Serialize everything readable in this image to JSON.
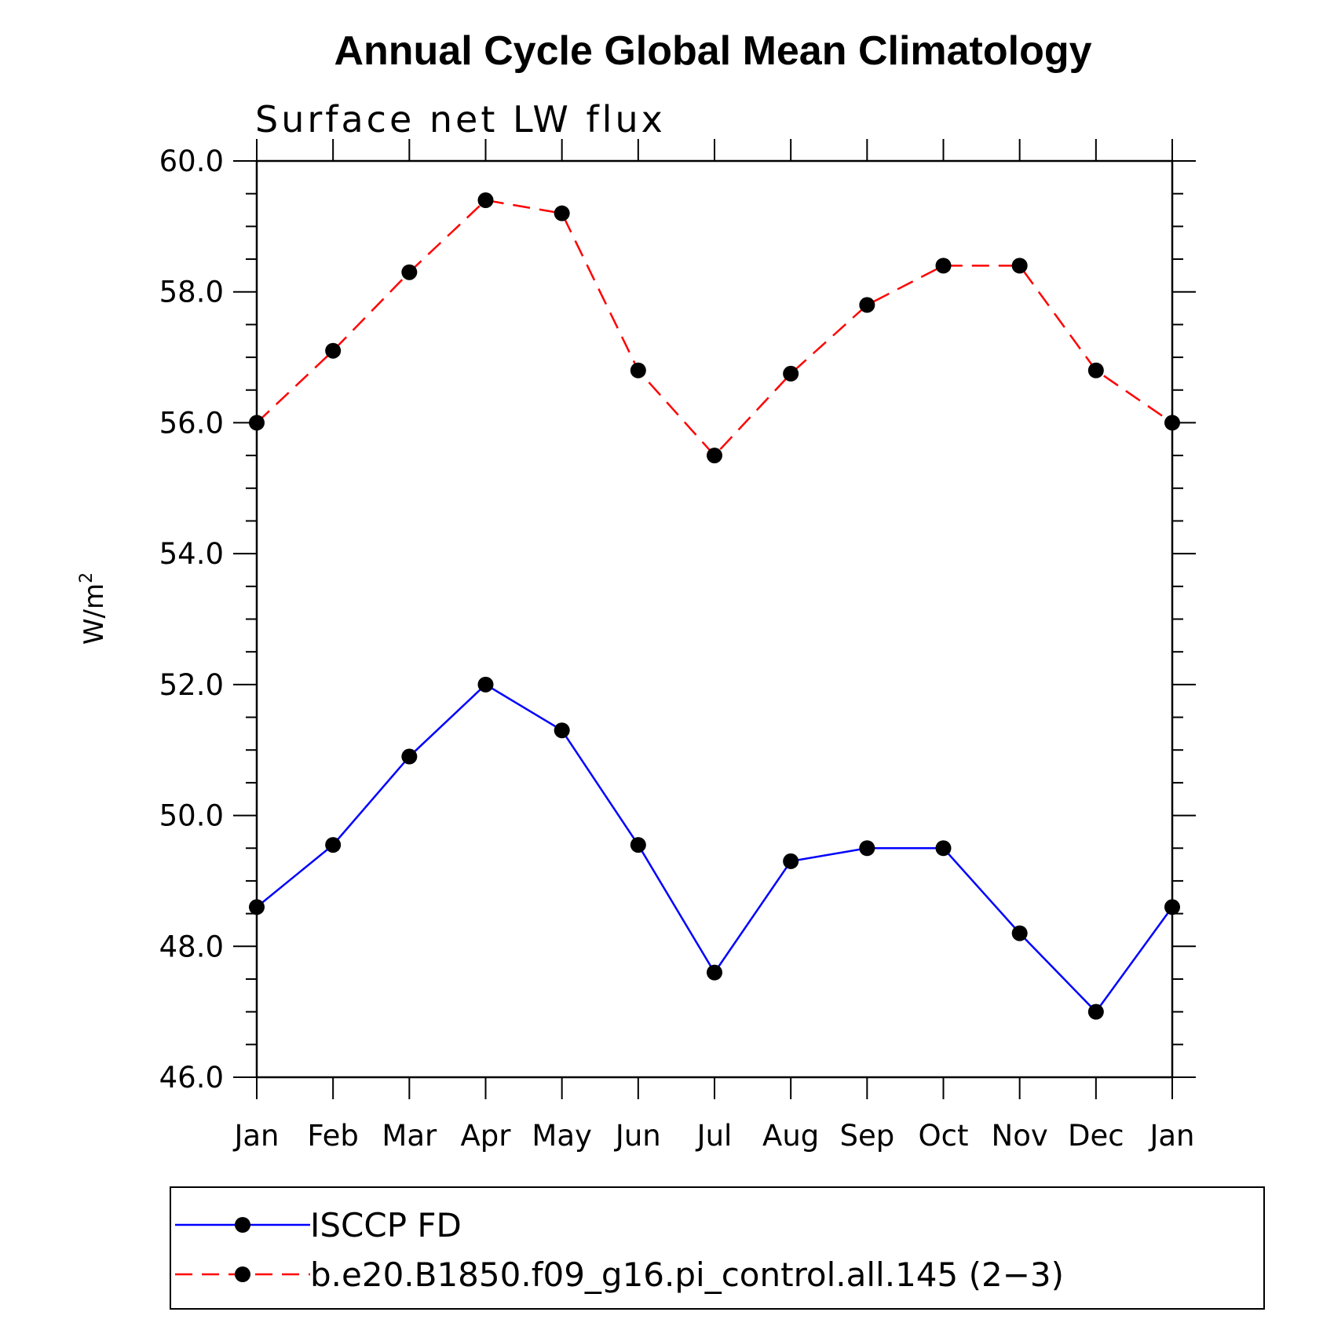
{
  "chart_data": {
    "type": "line",
    "title": "Annual Cycle Global Mean Climatology",
    "subtitle": "Surface net LW flux",
    "ylabel_base": "W/m",
    "ylabel_sup": "2",
    "xlabel": "",
    "categories": [
      "Jan",
      "Feb",
      "Mar",
      "Apr",
      "May",
      "Jun",
      "Jul",
      "Aug",
      "Sep",
      "Oct",
      "Nov",
      "Dec",
      "Jan"
    ],
    "ylim": [
      46.0,
      60.0
    ],
    "yticks": [
      "46.0",
      "48.0",
      "50.0",
      "52.0",
      "54.0",
      "56.0",
      "58.0",
      "60.0"
    ],
    "yticks_values": [
      46,
      48,
      50,
      52,
      54,
      56,
      58,
      60
    ],
    "y_minor_step": 0.5,
    "grid": false,
    "legend_position": "bottom",
    "series": [
      {
        "name": "ISCCP FD",
        "color": "#0000ff",
        "dash": "solid",
        "marker": "filled-circle",
        "values": [
          48.6,
          49.55,
          50.9,
          52.0,
          51.3,
          49.55,
          47.6,
          49.3,
          49.5,
          49.5,
          48.2,
          47.0,
          48.6
        ]
      },
      {
        "name": "b.e20.B1850.f09_g16.pi_control.all.145 (2−3)",
        "color": "#ff0000",
        "dash": "dashed",
        "marker": "filled-circle",
        "values": [
          56.0,
          57.1,
          58.3,
          59.4,
          59.2,
          56.8,
          55.5,
          56.75,
          57.8,
          58.4,
          58.4,
          56.8,
          56.0
        ]
      }
    ]
  }
}
